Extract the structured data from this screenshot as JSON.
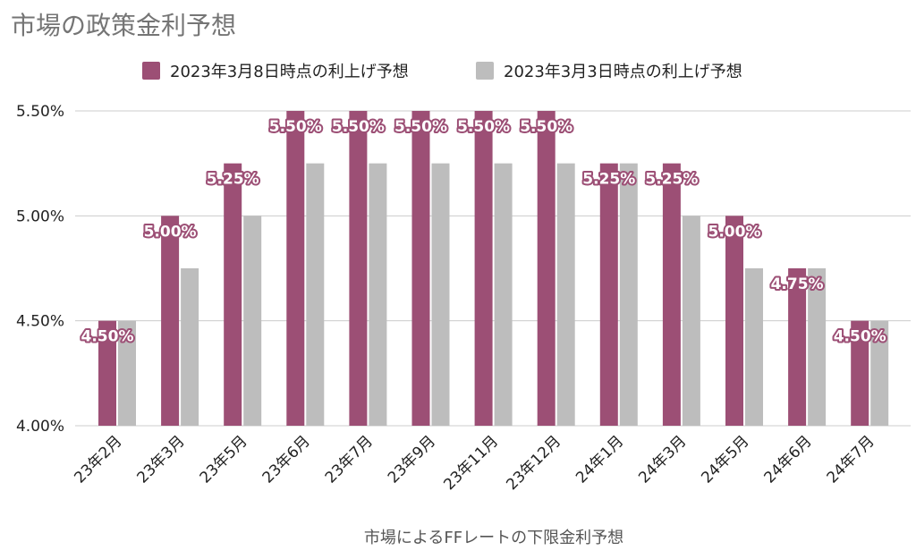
{
  "chart_data": {
    "type": "bar",
    "title": "市場の政策金利予想",
    "xlabel": "市場によるFFレートの下限金利予想",
    "ylabel": "",
    "ylim": [
      4.0,
      5.5
    ],
    "y_ticks": [
      "4.00%",
      "4.50%",
      "5.00%",
      "5.50%"
    ],
    "y_tick_values": [
      4.0,
      4.5,
      5.0,
      5.5
    ],
    "grid": true,
    "legend_position": "top",
    "categories": [
      "23年2月",
      "23年3月",
      "23年5月",
      "23年6月",
      "23年7月",
      "23年9月",
      "23年11月",
      "23年12月",
      "24年1月",
      "24年3月",
      "24年5月",
      "24年6月",
      "24年7月"
    ],
    "series": [
      {
        "name": "2023年3月8日時点の利上げ予想",
        "color": "#9c4f75",
        "values": [
          4.5,
          5.0,
          5.25,
          5.5,
          5.5,
          5.5,
          5.5,
          5.5,
          5.25,
          5.25,
          5.0,
          4.75,
          4.5
        ],
        "data_labels": [
          "4.50%",
          "5.00%",
          "5.25%",
          "5.50%",
          "5.50%",
          "5.50%",
          "5.50%",
          "5.50%",
          "5.25%",
          "5.25%",
          "5.00%",
          "4.75%",
          "4.50%"
        ]
      },
      {
        "name": "2023年3月3日時点の利上げ予想",
        "color": "#bdbdbd",
        "values": [
          4.5,
          4.75,
          5.0,
          5.25,
          5.25,
          5.25,
          5.25,
          5.25,
          5.25,
          5.0,
          4.75,
          4.75,
          4.5
        ]
      }
    ]
  },
  "colors": {
    "title": "#757575",
    "axis_text": "#222222",
    "grid": "#cccccc"
  }
}
